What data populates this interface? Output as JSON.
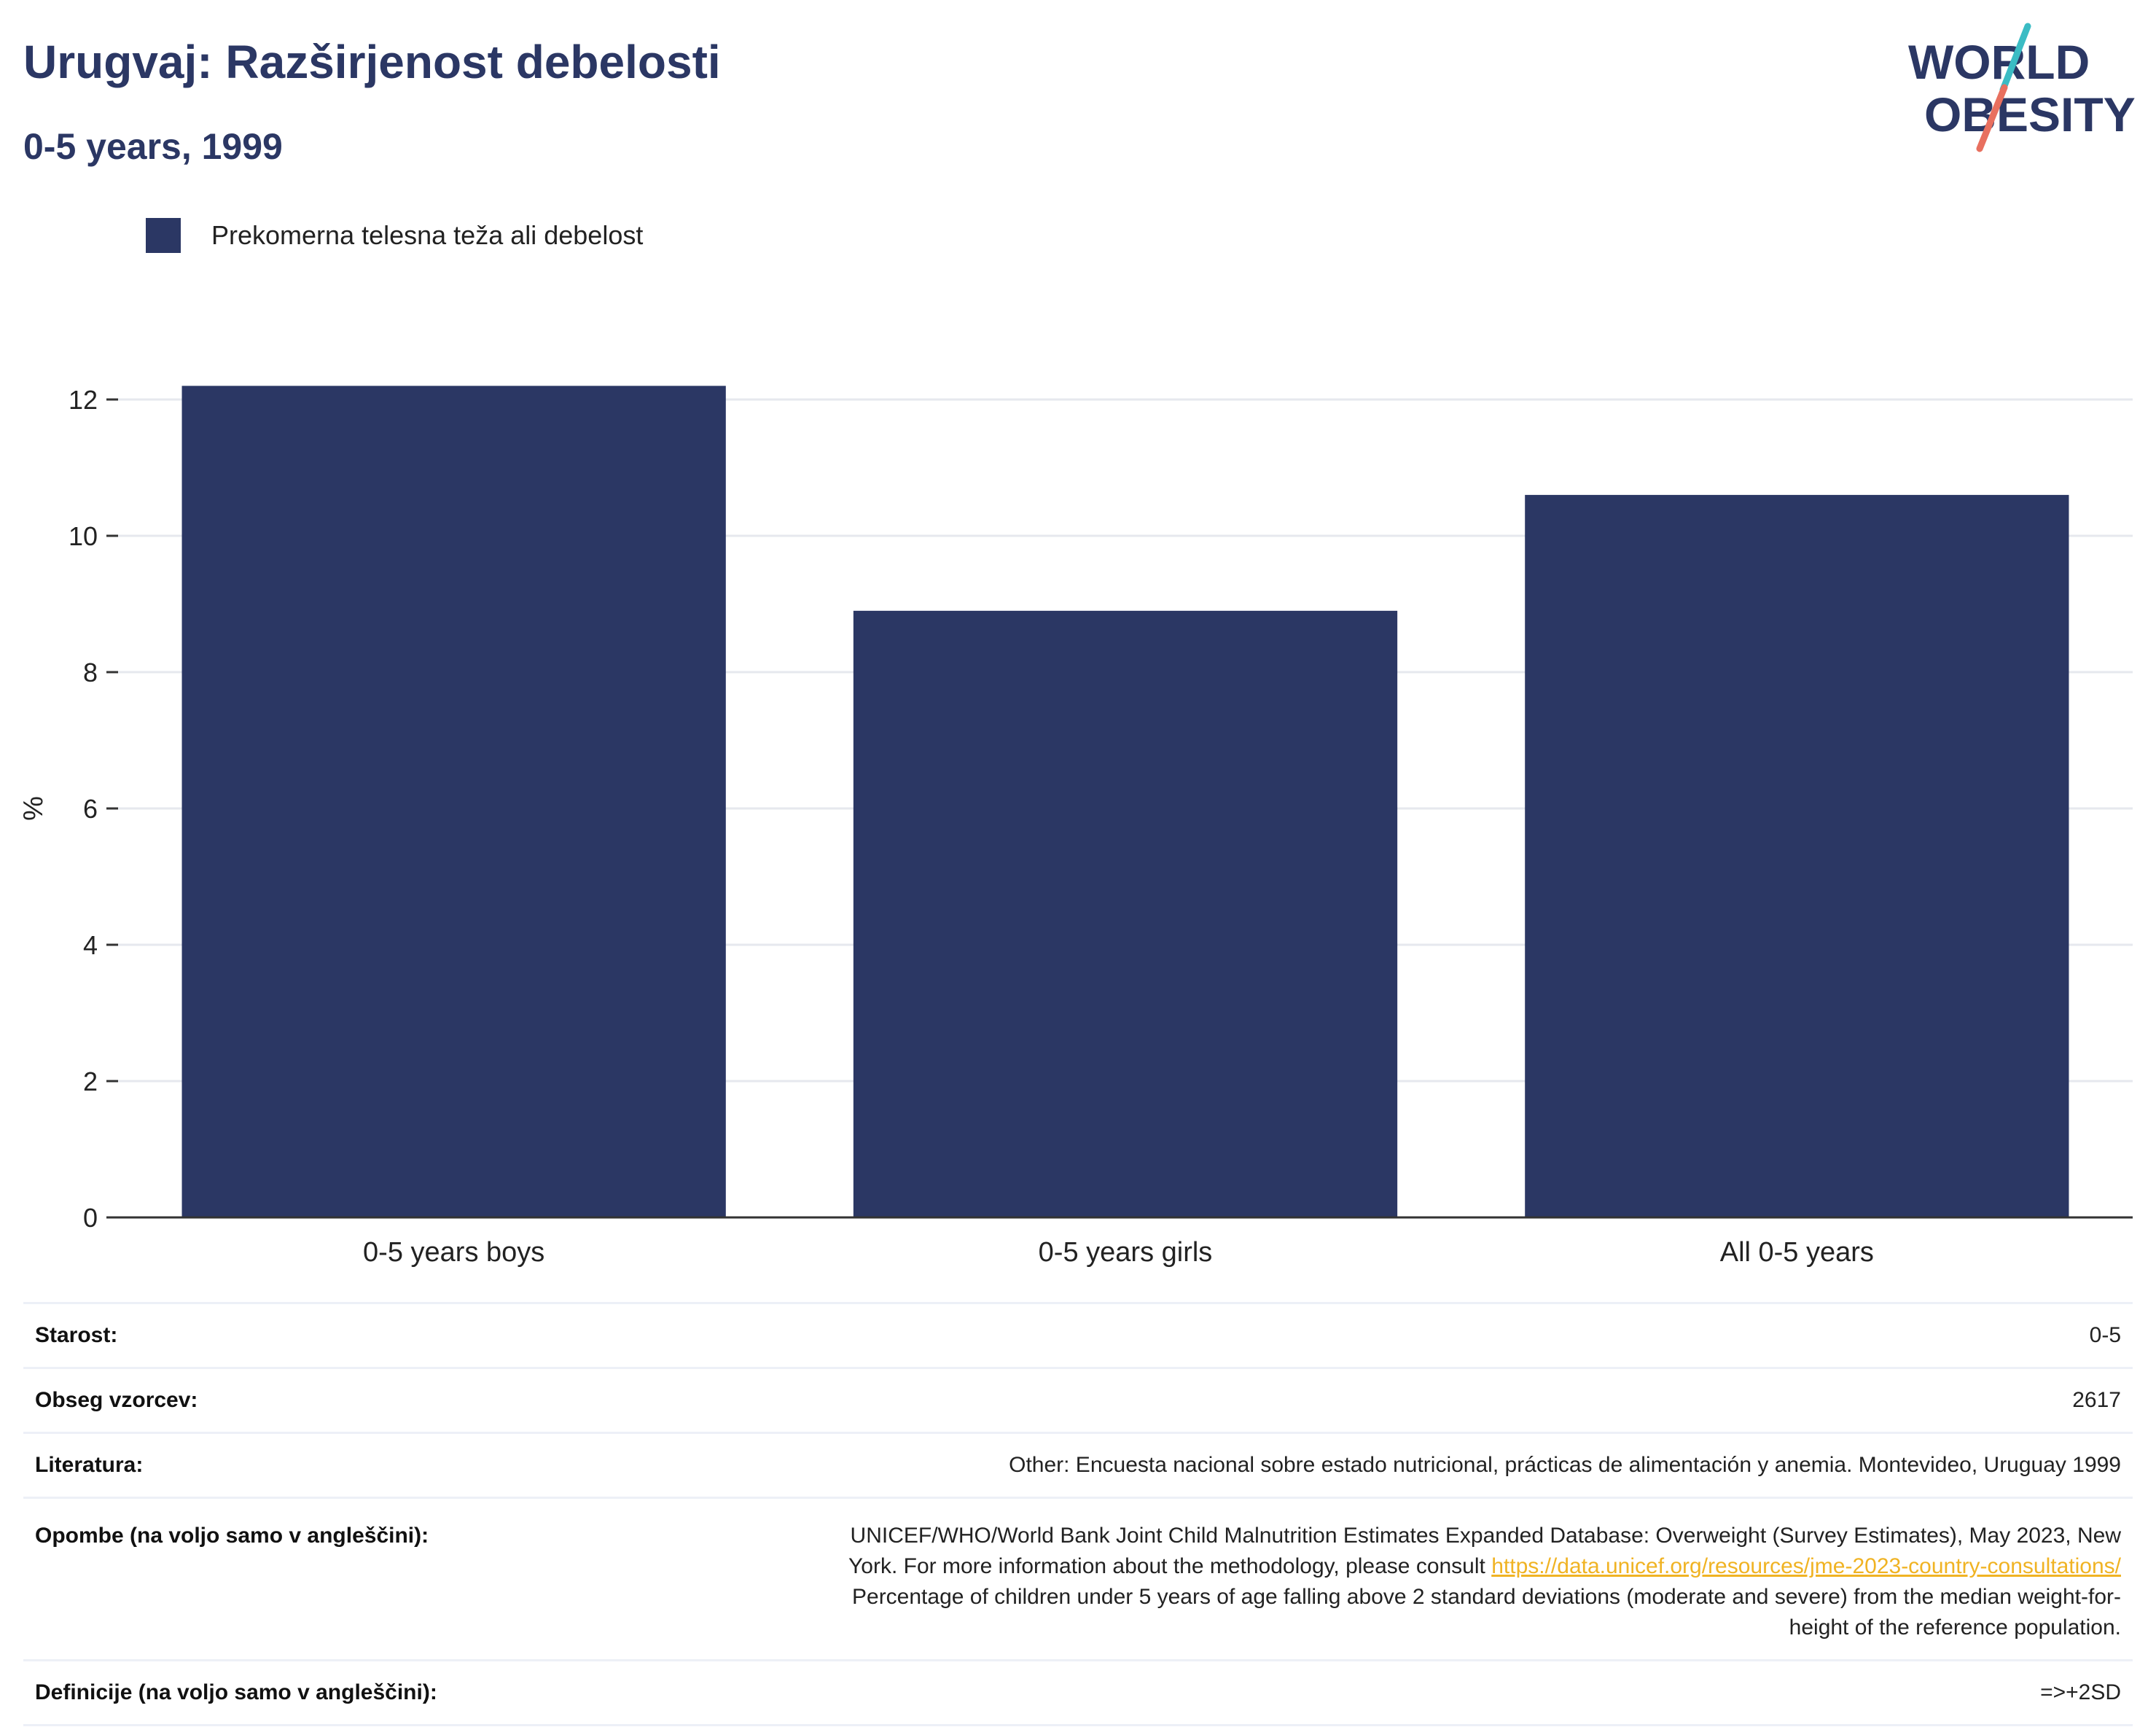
{
  "title": "Urugvaj: Razširjenost debelosti",
  "subtitle": "0-5 years, 1999",
  "logo": {
    "line1": "WORLD",
    "line2": "OBESITY",
    "colors": {
      "text": "#2b3764",
      "slash_teal": "#3bbcc4",
      "slash_coral": "#e8705f"
    }
  },
  "legend": {
    "label": "Prekomerna telesna teža ali debelost"
  },
  "colors": {
    "bar": "#2b3764",
    "grid": "#e6e8ee",
    "axis": "#333333",
    "title": "#2b3764",
    "link": "#f0b323"
  },
  "chart_data": {
    "type": "bar",
    "categories": [
      "0-5 years boys",
      "0-5 years girls",
      "All 0-5 years"
    ],
    "series": [
      {
        "name": "Prekomerna telesna teža ali debelost",
        "values": [
          12.2,
          8.9,
          10.6
        ]
      }
    ],
    "ylabel": "%",
    "ylim": [
      0,
      12
    ],
    "yticks": [
      0,
      2,
      4,
      6,
      8,
      10,
      12
    ],
    "grid": true,
    "legend_position": "top-left"
  },
  "info": {
    "age": {
      "label": "Starost:",
      "value": "0-5"
    },
    "sample": {
      "label": "Obseg vzorcev:",
      "value": "2617"
    },
    "literature": {
      "label": "Literatura:",
      "value": "Other: Encuesta nacional sobre estado nutricional, prácticas de alimentación y anemia. Montevideo, Uruguay 1999"
    },
    "notes": {
      "label": "Opombe (na voljo samo v angleščini):",
      "line1": "UNICEF/WHO/World Bank Joint Child Malnutrition Estimates Expanded Database: Overweight (Survey Estimates), May 2023, New",
      "line2_prefix": "York. For more information about the methodology, please consult ",
      "link": "https://data.unicef.org/resources/jme-2023-country-consultations/",
      "line3": "Percentage of children under 5 years of age falling above 2 standard deviations (moderate and severe) from the median weight-for-",
      "line4": "height of the reference population."
    },
    "definitions": {
      "label": "Definicije (na voljo samo v angleščini):",
      "value": "=>+2SD"
    }
  }
}
